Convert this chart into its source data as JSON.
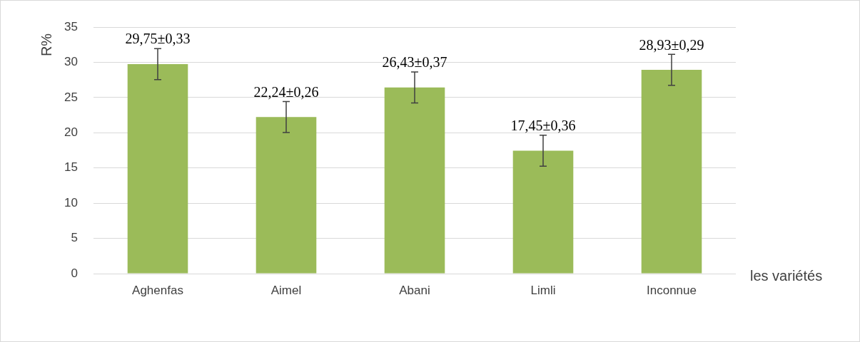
{
  "chart_data": {
    "type": "bar",
    "xlabel": "les variétés",
    "ylabel": "R%",
    "categories": [
      "Aghenfas",
      "Aimel",
      "Abani",
      "Limli",
      "Inconnue"
    ],
    "values": [
      29.75,
      22.24,
      26.43,
      17.45,
      28.93
    ],
    "errors": [
      2.2,
      2.2,
      2.2,
      2.2,
      2.2
    ],
    "value_labels": [
      "29,75±0,33",
      "22,24±0,26",
      "26,43±0,37",
      "17,45±0,36",
      "28,93±0,29"
    ],
    "color": "#9bbb59",
    "ylim": [
      0,
      35
    ],
    "yticks": [
      0,
      5,
      10,
      15,
      20,
      25,
      30,
      35
    ],
    "grid": "y",
    "legend": false
  }
}
